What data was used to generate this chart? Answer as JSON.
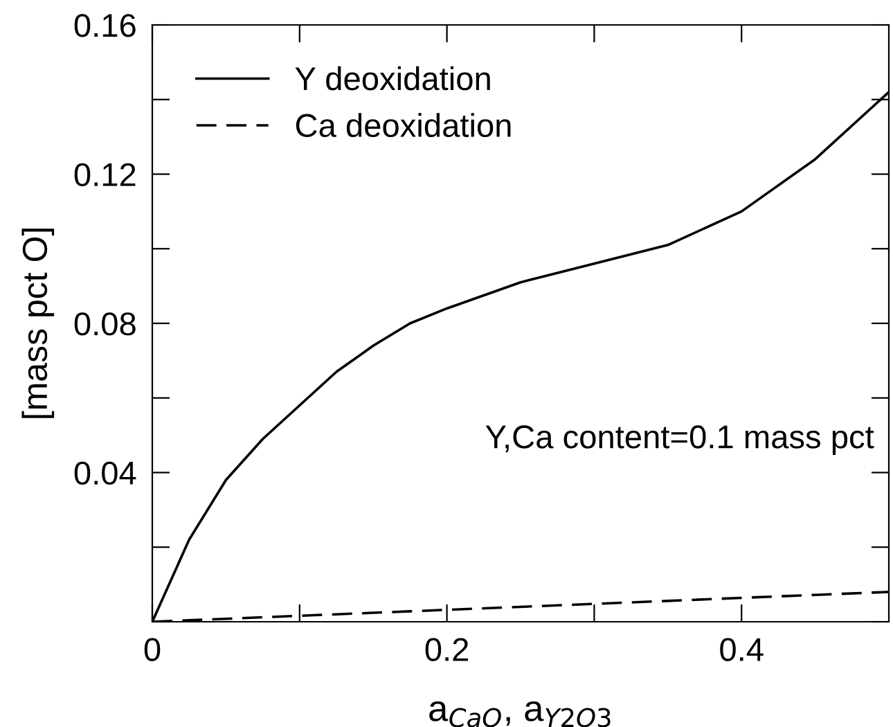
{
  "chart_data": {
    "type": "line",
    "xlabel": "a$_{CaO}$, a$_{Y2O3}$",
    "ylabel": "[mass pct O]",
    "annotations": [
      "Y,Ca content=0.1 mass pct"
    ],
    "x": [
      0,
      0.025,
      0.05,
      0.075,
      0.1,
      0.125,
      0.15,
      0.175,
      0.2,
      0.25,
      0.3,
      0.35,
      0.4,
      0.45,
      0.5
    ],
    "series": [
      {
        "name": "Y deoxidation",
        "color": "#000000",
        "line_style": "solid",
        "values": [
          0,
          0.022,
          0.038,
          0.049,
          0.058,
          0.067,
          0.074,
          0.08,
          0.084,
          0.091,
          0.096,
          0.101,
          0.11,
          0.124,
          0.142
        ]
      },
      {
        "name": "Ca deoxidation",
        "color": "#000000",
        "line_style": "dashed",
        "values": [
          0,
          0.0004,
          0.0008,
          0.0012,
          0.0016,
          0.002,
          0.0024,
          0.0028,
          0.0032,
          0.004,
          0.0048,
          0.0056,
          0.0064,
          0.0072,
          0.008
        ]
      }
    ],
    "xlim": [
      0,
      0.5
    ],
    "ylim": [
      0,
      0.16
    ],
    "xticks": [
      0,
      {
        "value": 0.1,
        "label": null
      },
      0.2,
      {
        "value": 0.3,
        "label": null
      },
      0.4
    ],
    "yticks": [
      {
        "value": 0,
        "label": null
      },
      {
        "value": 0.02,
        "label": null
      },
      0.04,
      {
        "value": 0.06,
        "label": null
      },
      0.08,
      {
        "value": 0.1,
        "label": null
      },
      0.12,
      {
        "value": 0.14,
        "label": null
      },
      0.16
    ],
    "legend": "top left",
    "grid": false
  }
}
